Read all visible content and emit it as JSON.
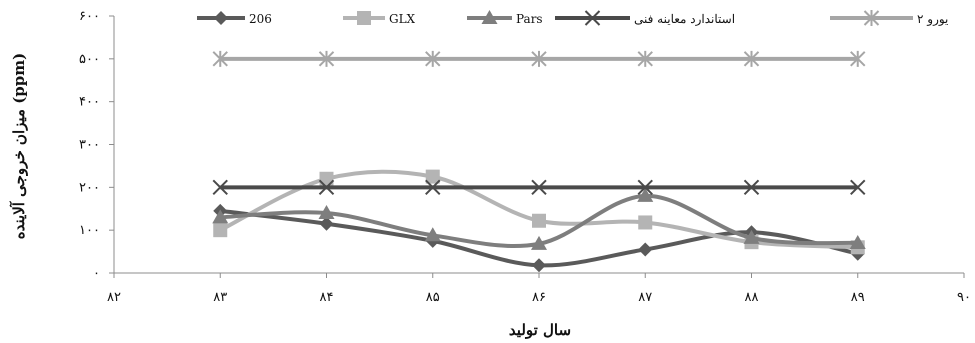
{
  "chart_data": {
    "type": "line",
    "xlabel": "سال تولید",
    "ylabel": "میزان خروجی آلاینده (ppm)",
    "xlim": [
      82,
      90
    ],
    "ylim": [
      0,
      600
    ],
    "x_ticks": [
      82,
      83,
      84,
      85,
      86,
      87,
      88,
      89,
      90
    ],
    "x_tick_labels": [
      "۸۲",
      "۸۳",
      "۸۴",
      "۸۵",
      "۸۶",
      "۸۷",
      "۸۸",
      "۸۹",
      "۹۰"
    ],
    "y_ticks": [
      0,
      100,
      200,
      300,
      400,
      500,
      600
    ],
    "y_tick_labels": [
      "۰",
      "۱۰۰",
      "۲۰۰",
      "۳۰۰",
      "۴۰۰",
      "۵۰۰",
      "۶۰۰"
    ],
    "grid": false,
    "legend_position": "top",
    "x": [
      83,
      84,
      85,
      86,
      87,
      88,
      89
    ],
    "series": [
      {
        "name": "206",
        "marker": "diamond",
        "color": "#5a5a5a",
        "values": [
          145,
          115,
          75,
          18,
          55,
          95,
          45
        ]
      },
      {
        "name": "GLX",
        "marker": "square",
        "color": "#b4b4b4",
        "values": [
          100,
          220,
          225,
          122,
          118,
          72,
          60
        ]
      },
      {
        "name": "Pars",
        "marker": "triangle",
        "color": "#7e7e7e",
        "values": [
          130,
          140,
          88,
          68,
          180,
          82,
          70
        ]
      },
      {
        "name": "استاندارد معاینه فنی",
        "marker": "x",
        "color": "#4a4a4a",
        "values": [
          200,
          200,
          200,
          200,
          200,
          200,
          200
        ]
      },
      {
        "name": "یورو ۲",
        "marker": "asterisk",
        "color": "#a6a6a6",
        "values": [
          500,
          500,
          500,
          500,
          500,
          500,
          500
        ]
      }
    ]
  }
}
